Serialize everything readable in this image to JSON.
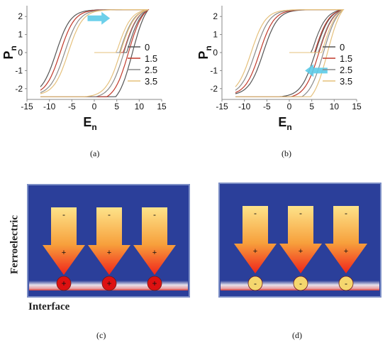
{
  "figure": {
    "panels": [
      {
        "id": "a",
        "caption": "(a)",
        "chart_data": {
          "type": "line",
          "title": "",
          "xlabel": "E",
          "xlabel_sub": "n",
          "ylabel": "P",
          "ylabel_sub": "n",
          "xlim": [
            -15,
            15
          ],
          "ylim": [
            -2.6,
            2.6
          ],
          "xticks": [
            "-15",
            "-10",
            "-5",
            "0",
            "5",
            "10",
            "15"
          ],
          "yticks": [
            "2",
            "1",
            "0",
            "-1",
            "-2"
          ],
          "legend_position": "right",
          "arrow": {
            "direction": "right",
            "x": [
              -1.5,
              3.5
            ],
            "y": 1.9
          },
          "series": [
            {
              "name": "0",
              "color": "#555555",
              "coercive_field": 8.5
            },
            {
              "name": "1.5",
              "color": "#c0392b",
              "coercive_field": 7.6
            },
            {
              "name": "2.5",
              "color": "#8a8a8a",
              "coercive_field": 6.6
            },
            {
              "name": "3.5",
              "color": "#e5c07b",
              "coercive_field": 5.8
            }
          ]
        }
      },
      {
        "id": "b",
        "caption": "(b)",
        "chart_data": {
          "type": "line",
          "title": "",
          "xlabel": "E",
          "xlabel_sub": "n",
          "ylabel": "P",
          "ylabel_sub": "n",
          "xlim": [
            -15,
            15
          ],
          "ylim": [
            -2.6,
            2.6
          ],
          "xticks": [
            "-15",
            "-10",
            "-5",
            "0",
            "5",
            "10",
            "15"
          ],
          "yticks": [
            "2",
            "1",
            "0",
            "-1",
            "-2"
          ],
          "legend_position": "right",
          "arrow": {
            "direction": "left",
            "x": [
              8.5,
              3.5
            ],
            "y": -1.0
          },
          "series": [
            {
              "name": "0",
              "color": "#555555",
              "coercive_field": 5.8
            },
            {
              "name": "1.5",
              "color": "#c0392b",
              "coercive_field": 6.6
            },
            {
              "name": "2.5",
              "color": "#8a8a8a",
              "coercive_field": 7.6
            },
            {
              "name": "3.5",
              "color": "#e5c07b",
              "coercive_field": 8.5
            }
          ]
        }
      },
      {
        "id": "c",
        "caption": "(c)",
        "side_label": "Ferroelectric",
        "bottom_label": "Interface",
        "arrows": [
          {
            "top": "-",
            "tip": "+"
          },
          {
            "top": "-",
            "tip": "+"
          },
          {
            "top": "-",
            "tip": "+"
          }
        ],
        "charges": [
          "+",
          "+",
          "+"
        ],
        "charge_color": "#dd1111"
      },
      {
        "id": "d",
        "caption": "(d)",
        "arrows": [
          {
            "top": "-",
            "tip": "+"
          },
          {
            "top": "-",
            "tip": "+"
          },
          {
            "top": "-",
            "tip": "+"
          }
        ],
        "charges": [
          "-",
          "-",
          "-"
        ],
        "charge_color": "#f5d76e"
      }
    ],
    "colors": {
      "panel_bg": "#2b3f9a",
      "panel_border": "#7d8fc6",
      "arrow_arrow": "#cccccc"
    }
  }
}
